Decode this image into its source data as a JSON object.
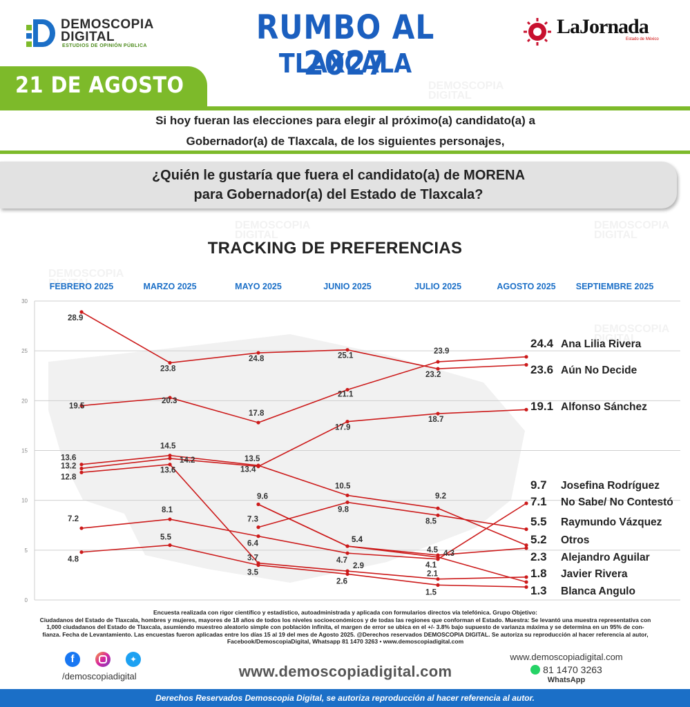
{
  "header": {
    "brand_line1": "DEMOSCOPIA",
    "brand_line2": "DIGITAL",
    "brand_tagline": "ESTUDIOS DE OPINIÓN PÚBLICA",
    "title": "RUMBO AL 2027",
    "subtitle": "TLAXCALA",
    "partner_name": "LaJornada",
    "partner_sub": "Estado de México"
  },
  "date": "21 DE AGOSTO",
  "intro": {
    "line1": "Si hoy fueran las elecciones para elegir al próximo(a) candidato(a) a",
    "line2": "Gobernador(a) de Tlaxcala, de los siguientes personajes,"
  },
  "question": {
    "line1": "¿Quién le gustaría que fuera el candidato(a) de MORENA",
    "line2": "para Gobernador(a) del Estado de Tlaxcala?"
  },
  "chart_data": {
    "type": "line",
    "title": "TRACKING DE PREFERENCIAS",
    "categories": [
      "FEBRERO 2025",
      "MARZO 2025",
      "MAYO 2025",
      "JUNIO 2025",
      "JULIO 2025",
      "AGOSTO 2025",
      "SEPTIEMBRE 2025"
    ],
    "ylim": [
      0,
      30
    ],
    "yticks": [
      0,
      5,
      10,
      15,
      20,
      25,
      30
    ],
    "grid": true,
    "line_color": "#cc1a1a",
    "series": [
      {
        "name": "Ana Lilia Rivera",
        "values": [
          19.5,
          20.3,
          17.8,
          21.1,
          23.9,
          24.4,
          null
        ]
      },
      {
        "name": "Aún No Decide",
        "values": [
          28.9,
          23.8,
          24.8,
          25.1,
          23.2,
          23.6,
          null
        ]
      },
      {
        "name": "Alfonso Sánchez",
        "values": [
          13.2,
          14.2,
          13.4,
          17.9,
          18.7,
          19.1,
          null
        ]
      },
      {
        "name": "Josefina Rodríguez",
        "values": [
          7.2,
          8.1,
          6.4,
          4.7,
          4.1,
          9.7,
          null
        ]
      },
      {
        "name": "No Sabe/ No Contestó",
        "values": [
          null,
          null,
          7.3,
          9.8,
          8.5,
          7.1,
          null
        ]
      },
      {
        "name": "Raymundo Vázquez",
        "values": [
          13.6,
          14.5,
          13.5,
          10.5,
          9.2,
          5.5,
          null
        ]
      },
      {
        "name": "Otros",
        "values": [
          null,
          null,
          9.6,
          5.4,
          4.5,
          5.2,
          null
        ]
      },
      {
        "name": "Alejandro Aguilar",
        "values": [
          12.8,
          13.6,
          3.7,
          2.9,
          2.1,
          2.3,
          null
        ]
      },
      {
        "name": "Javier Rivera",
        "values": [
          null,
          null,
          9.6,
          5.4,
          4.3,
          1.8,
          null
        ]
      },
      {
        "name": "Blanca Angulo",
        "values": [
          4.8,
          5.5,
          3.5,
          2.6,
          1.5,
          1.3,
          null
        ]
      }
    ],
    "end_labels": [
      {
        "value": "24.4",
        "name": "Ana Lilia Rivera"
      },
      {
        "value": "23.6",
        "name": "Aún No Decide"
      },
      {
        "value": "19.1",
        "name": "Alfonso Sánchez"
      },
      {
        "value": "9.7",
        "name": "Josefina Rodríguez"
      },
      {
        "value": "7.1",
        "name": "No Sabe/ No Contestó"
      },
      {
        "value": "5.5",
        "name": "Raymundo Vázquez"
      },
      {
        "value": "5.2",
        "name": "Otros"
      },
      {
        "value": "2.3",
        "name": "Alejandro Aguilar"
      },
      {
        "value": "1.8",
        "name": "Javier Rivera"
      },
      {
        "value": "1.3",
        "name": "Blanca Angulo"
      }
    ]
  },
  "footnote": {
    "line1": "Encuesta realizada con rigor científico y estadístico, autoadministrada y aplicada con formularios directos vía telefónica. Grupo Objetivo:",
    "line2": "Ciudadanos del Estado de Tlaxcala, hombres y mujeres, mayores de 18 años de todos los niveles socioeconómicos y de todas las regiones que conforman el Estado. Muestra: Se levantó una muestra representativa con",
    "line3": "1,000 ciudadanos del Estado de Tlaxcala, asumiendo muestreo aleatorio simple con población infinita, el margen de error se ubica en el +/- 3.8% bajo supuesto de varianza máxima y se determina en un 95% de con-",
    "line4": "fianza. Fecha de Levantamiento. Las encuestas fueron aplicadas entre los días 15 al 19 del mes de Agosto 2025. @Derechos reservados DEMOSCOPIA DIGITAL. Se autoriza su reproducción al hacer referencia al autor,",
    "line5": "Facebook/DemoscopiaDigital, Whatsapp 81 1470 3263 • www.demoscopiadigital.com"
  },
  "social": {
    "handle": "/demoscopiadigital",
    "icons": [
      "facebook-icon",
      "instagram-icon",
      "twitter-icon"
    ]
  },
  "website": "www.demoscopiadigital.com",
  "contact": {
    "web": "www.demoscopiadigital.com",
    "phone": "81 1470 3263",
    "whatsapp_label": "WhatsApp"
  },
  "copyright": "Derechos Reservados Demoscopia Digital, se autoriza reproducción al hacer referencia al autor.",
  "colors": {
    "brand_blue": "#1b5fbf",
    "brand_green": "#7dba2a",
    "line_red": "#cc1a1a"
  }
}
